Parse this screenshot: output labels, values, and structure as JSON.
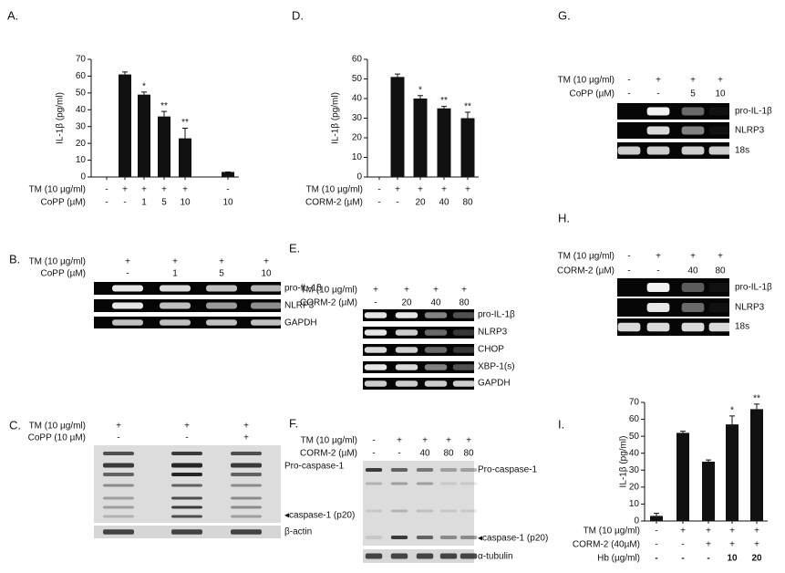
{
  "chart_data": [
    {
      "type": "bar",
      "panel": "A.",
      "ylabel": "IL-1β (pg/ml)",
      "color": "#111111",
      "values": [
        0,
        61,
        49,
        36,
        23,
        3
      ],
      "errors": [
        0,
        1.5,
        1.5,
        3,
        6,
        0
      ],
      "significance": [
        null,
        null,
        "*",
        "**",
        "**",
        null
      ],
      "ylim": [
        0,
        70
      ],
      "yticks": [
        0,
        10,
        20,
        30,
        40,
        50,
        60,
        70
      ],
      "conditions": [
        {
          "label": "TM (10 µg/ml)",
          "values": [
            "-",
            "+",
            "+",
            "+",
            "+",
            "-"
          ]
        },
        {
          "label": "CoPP (µM)",
          "values": [
            "-",
            "-",
            "1",
            "5",
            "10",
            "10"
          ]
        }
      ]
    },
    {
      "type": "bar",
      "panel": "D.",
      "ylabel": "IL-1β (pg/ml)",
      "color": "#111111",
      "values": [
        0,
        51,
        40,
        35,
        30
      ],
      "errors": [
        0,
        1.5,
        1.5,
        1,
        3
      ],
      "significance": [
        null,
        null,
        "*",
        "**",
        "**"
      ],
      "ylim": [
        0,
        60
      ],
      "yticks": [
        0,
        10,
        20,
        30,
        40,
        50,
        60
      ],
      "conditions": [
        {
          "label": "TM (10 µg/ml)",
          "values": [
            "-",
            "+",
            "+",
            "+",
            "+"
          ]
        },
        {
          "label": "CORM-2 (µM)",
          "values": [
            "-",
            "-",
            "20",
            "40",
            "80"
          ]
        }
      ]
    },
    {
      "type": "bar",
      "panel": "I.",
      "ylabel": "IL-1β (pg/ml)",
      "color": "#111111",
      "values": [
        3,
        52,
        35,
        57,
        66
      ],
      "errors": [
        1.5,
        1,
        1,
        5,
        3
      ],
      "significance": [
        null,
        null,
        null,
        "*",
        "**"
      ],
      "ylim": [
        0,
        70
      ],
      "yticks": [
        0,
        10,
        20,
        30,
        40,
        50,
        60,
        70
      ],
      "conditions": [
        {
          "label": "TM (10 µg/ml)",
          "values": [
            "-",
            "+",
            "+",
            "+",
            "+"
          ]
        },
        {
          "label": "CORM-2 (40µM)",
          "values": [
            "-",
            "-",
            "+",
            "+",
            "+"
          ]
        },
        {
          "label": "Hb (µg/ml)",
          "values": [
            "-",
            "-",
            "-",
            "10",
            "20"
          ]
        }
      ]
    }
  ],
  "blots": [
    {
      "panel": "B.",
      "conditions": [
        {
          "label": "TM (10 µg/ml)",
          "values": [
            "+",
            "+",
            "+",
            "+"
          ]
        },
        {
          "label": "CoPP (µM)",
          "values": [
            "-",
            "1",
            "5",
            "10"
          ]
        }
      ],
      "bands": [
        "pro-IL-1β",
        "NLRP3",
        "GAPDH"
      ]
    },
    {
      "panel": "C.",
      "conditions": [
        {
          "label": "TM (10 µg/ml)",
          "values": [
            "+",
            "+",
            "+"
          ]
        },
        {
          "label": "CoPP (10 µM)",
          "values": [
            "-",
            "-",
            "+"
          ]
        }
      ],
      "bands": [
        "Pro-caspase-1",
        "◂caspase-1 (p20)",
        "β-actin"
      ]
    },
    {
      "panel": "E.",
      "conditions": [
        {
          "label": "TM (10 µg/ml)",
          "values": [
            "+",
            "+",
            "+",
            "+"
          ]
        },
        {
          "label": "CORM-2 (µM)",
          "values": [
            "-",
            "20",
            "40",
            "80"
          ]
        }
      ],
      "bands": [
        "pro-IL-1β",
        "NLRP3",
        "CHOP",
        "XBP-1(s)",
        "GAPDH"
      ]
    },
    {
      "panel": "F.",
      "conditions": [
        {
          "label": "TM (10 µg/ml)",
          "values": [
            "-",
            "+",
            "+",
            "+",
            "+"
          ]
        },
        {
          "label": "CORM-2 (µM)",
          "values": [
            "-",
            "-",
            "40",
            "80",
            "80"
          ]
        }
      ],
      "bands": [
        "Pro-caspase-1",
        "◂caspase-1 (p20)",
        "α-tubulin"
      ]
    },
    {
      "panel": "G.",
      "conditions": [
        {
          "label": "TM (10 µg/ml)",
          "values": [
            "-",
            "+",
            "+",
            "+"
          ]
        },
        {
          "label": "CoPP (µM)",
          "values": [
            "-",
            "-",
            "5",
            "10"
          ]
        }
      ],
      "bands": [
        "pro-IL-1β",
        "NLRP3",
        "18s"
      ]
    },
    {
      "panel": "H.",
      "conditions": [
        {
          "label": "TM (10 µg/ml)",
          "values": [
            "-",
            "+",
            "+",
            "+"
          ]
        },
        {
          "label": "CORM-2 (µM)",
          "values": [
            "-",
            "-",
            "40",
            "80"
          ]
        }
      ],
      "bands": [
        "pro-IL-1β",
        "NLRP3",
        "18s"
      ]
    }
  ]
}
